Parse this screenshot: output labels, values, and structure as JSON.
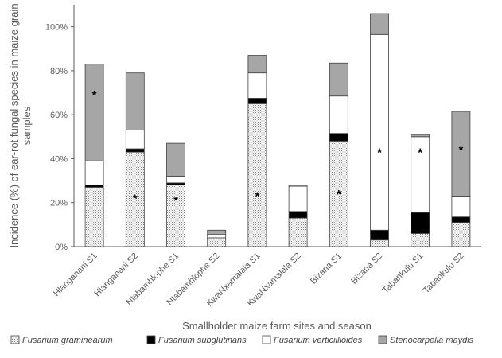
{
  "chart_data": {
    "type": "bar",
    "stacked": true,
    "categories": [
      "Hlanganani S1",
      "Hlanganani S2",
      "Ntabamhlophe S1",
      "Ntabamhlophe S2",
      "KwaNxamalala S1",
      "KwaNxamalala S2",
      "Bizana S1",
      "Bizana S2",
      "Tabankulu S1",
      "Tabankulu S2"
    ],
    "series": [
      {
        "name": "Fusarium graminearum",
        "values": [
          27,
          43,
          28,
          4,
          65,
          13,
          48,
          3,
          6,
          11
        ],
        "color": "#ffffff",
        "pattern": "dots"
      },
      {
        "name": "Fusarium subglutinans",
        "values": [
          1,
          1.5,
          1,
          0,
          2.5,
          3,
          3.5,
          4.5,
          9.5,
          2.5
        ],
        "color": "#000000"
      },
      {
        "name": "Fusarium verticillioides",
        "values": [
          11,
          8.5,
          3,
          1.5,
          11.5,
          11.5,
          17,
          89,
          34.5,
          9.5
        ],
        "color": "#ffffff"
      },
      {
        "name": "Stenocarpella maydis",
        "values": [
          44,
          26,
          15,
          2,
          8,
          0.5,
          15,
          9.5,
          1,
          38.5
        ],
        "color": "#a6a6a6"
      }
    ],
    "significance_markers": [
      {
        "category": "Hlanganani S1",
        "y": 70,
        "label": "*"
      },
      {
        "category": "Hlanganani S2",
        "y": 23,
        "label": "*"
      },
      {
        "category": "Ntabamhlophe S1",
        "y": 22,
        "label": "*"
      },
      {
        "category": "KwaNxamalala S1",
        "y": 24,
        "label": "*"
      },
      {
        "category": "Bizana S1",
        "y": 25,
        "label": "*"
      },
      {
        "category": "Bizana S2",
        "y": 44,
        "label": "*"
      },
      {
        "category": "Tabankulu S1",
        "y": 44,
        "label": "*"
      },
      {
        "category": "Tabankulu S2",
        "y": 45,
        "label": "*"
      }
    ],
    "ylabel": "Incidence (%) of ear-rot fungal species in maize grain samples",
    "ylabel_lines": [
      "Incidence (%) of ear-rot fungal species in maize grain",
      "samples"
    ],
    "xlabel": "Smallholder maize farm sites and season",
    "ylim": [
      0,
      110
    ],
    "yticks": [
      0,
      20,
      40,
      60,
      80,
      100
    ],
    "ytick_labels": [
      "0%",
      "20%",
      "40%",
      "60%",
      "80%",
      "100%"
    ],
    "grid": false,
    "legend_position": "bottom"
  }
}
